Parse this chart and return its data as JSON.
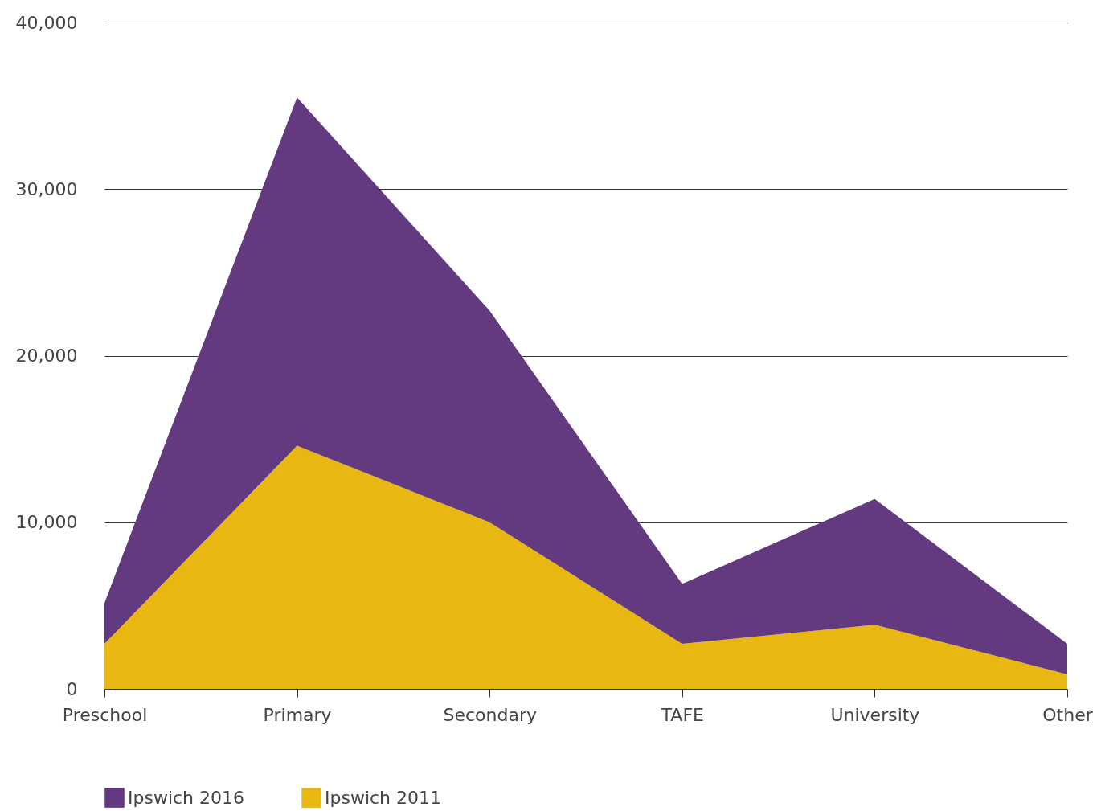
{
  "chart_data": {
    "type": "area",
    "stacked": true,
    "categories": [
      "Preschool",
      "Primary",
      "Secondary",
      "TAFE",
      "University",
      "Other"
    ],
    "series": [
      {
        "name": "Ipswich 2011",
        "color": "#e8b711",
        "values": [
          2700,
          14600,
          10000,
          2700,
          3850,
          870
        ]
      },
      {
        "name": "Ipswich 2016",
        "color": "#63397f",
        "values": [
          2450,
          20900,
          12700,
          3600,
          7550,
          1830
        ]
      }
    ],
    "ylim": [
      0,
      40000
    ],
    "yticks": [
      0,
      {
        "value": 10000,
        "label": "10,000"
      },
      {
        "value": 20000,
        "label": "20,000"
      },
      {
        "value": 30000,
        "label": "30,000"
      },
      {
        "value": 40000,
        "label": "40,000"
      }
    ],
    "grid": "y",
    "legend": "bottom left"
  }
}
